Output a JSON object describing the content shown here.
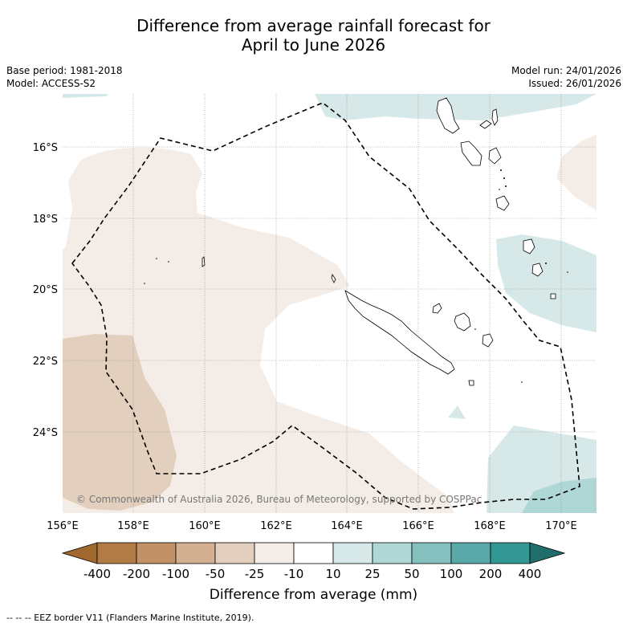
{
  "title": {
    "line1": "Difference from average rainfall forecast for",
    "line2": "April to June 2026"
  },
  "meta": {
    "base_period": "Base period: 1981-2018",
    "model": "Model: ACCESS-S2",
    "model_run": "Model run: 24/01/2026",
    "issued": "Issued: 26/01/2026"
  },
  "axes": {
    "lon_labels": [
      "156°E",
      "158°E",
      "160°E",
      "162°E",
      "164°E",
      "166°E",
      "168°E",
      "170°E"
    ],
    "lat_labels": [
      "16°S",
      "18°S",
      "20°S",
      "22°S",
      "24°S"
    ]
  },
  "copyright": "© Commonwealth of Australia 2026, Bureau of Meteorology, supported by COSPPac",
  "colorbar": {
    "ticks": [
      "-400",
      "-200",
      "-100",
      "-50",
      "-25",
      "-10",
      "10",
      "25",
      "50",
      "100",
      "200",
      "400"
    ],
    "colors": [
      "#a0672f",
      "#b27a45",
      "#c29166",
      "#d4b092",
      "#e3cfbd",
      "#f4ede7",
      "#ffffff",
      "#d6e9e8",
      "#afd7d6",
      "#85c0bf",
      "#58a9a7",
      "#339894",
      "#1f6e6a"
    ],
    "label": "Difference from average (mm)"
  },
  "footer": "--  --  -- EEZ border V11 (Flanders Marine Institute, 2019)."
}
